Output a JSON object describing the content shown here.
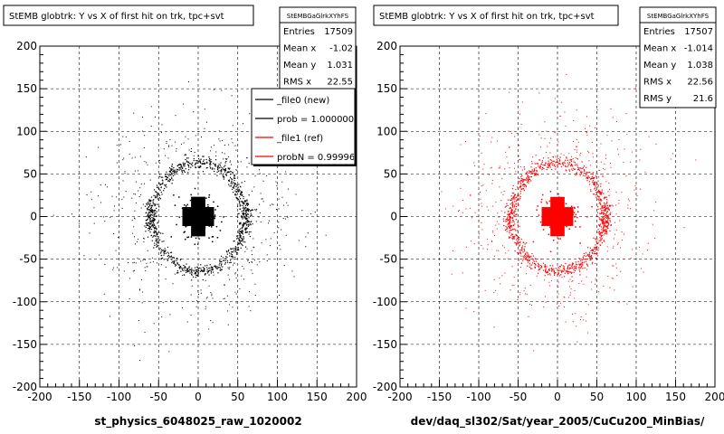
{
  "chart_data": [
    {
      "type": "scatter",
      "title": "StEMB globtrk: Y vs X of first hit on trk, tpc+svt",
      "xlabel": "st_physics_6048025_raw_1020002",
      "ylabel": "",
      "xlim": [
        -200,
        200
      ],
      "ylim": [
        -200,
        200
      ],
      "xticks": [
        "-200",
        "-150",
        "-100",
        "-50",
        "0",
        "50",
        "100",
        "150",
        "200"
      ],
      "yticks": [
        "200",
        "150",
        "100",
        "50",
        "0",
        "-50",
        "-100",
        "-150",
        "-200"
      ],
      "grid": true,
      "point_color": "#000000",
      "stats": {
        "name": "StEMBGaGlrkXYhFS",
        "rows": [
          {
            "label": "Entries",
            "value": "17509"
          },
          {
            "label": "Mean x",
            "value": "-1.02"
          },
          {
            "label": "Mean y",
            "value": "1.031"
          },
          {
            "label": "RMS x",
            "value": "22.55"
          }
        ]
      },
      "legend": {
        "placement": "top-right",
        "entries": [
          {
            "label": "_file0 (new)",
            "color": "#000000"
          },
          {
            "label": "prob = 1.000000",
            "color": "#000000"
          },
          {
            "label": "_file1 (ref)",
            "color": "#ff0000"
          },
          {
            "label": "probN = 0.99996",
            "color": "#ff0000"
          }
        ]
      }
    },
    {
      "type": "scatter",
      "title": "StEMB globtrk: Y vs X of first hit on trk, tpc+svt",
      "xlabel": "dev/daq_sl302/Sat/year_2005/CuCu200_MinBias/",
      "ylabel": "",
      "xlim": [
        -200,
        200
      ],
      "ylim": [
        -200,
        200
      ],
      "xticks": [
        "-200",
        "-150",
        "-100",
        "-50",
        "0",
        "50",
        "100",
        "150",
        "200"
      ],
      "yticks": [
        "200",
        "150",
        "100",
        "50",
        "0",
        "-50",
        "-100",
        "-150",
        "-200"
      ],
      "grid": true,
      "point_color": "#ff0000",
      "stats": {
        "name": "StEMBGaGlrkXYhFS",
        "rows": [
          {
            "label": "Entries",
            "value": "17507"
          },
          {
            "label": "Mean x",
            "value": "-1.014"
          },
          {
            "label": "Mean y",
            "value": "1.038"
          },
          {
            "label": "RMS x",
            "value": "22.56"
          },
          {
            "label": "RMS y",
            "value": "21.6"
          }
        ]
      }
    }
  ]
}
